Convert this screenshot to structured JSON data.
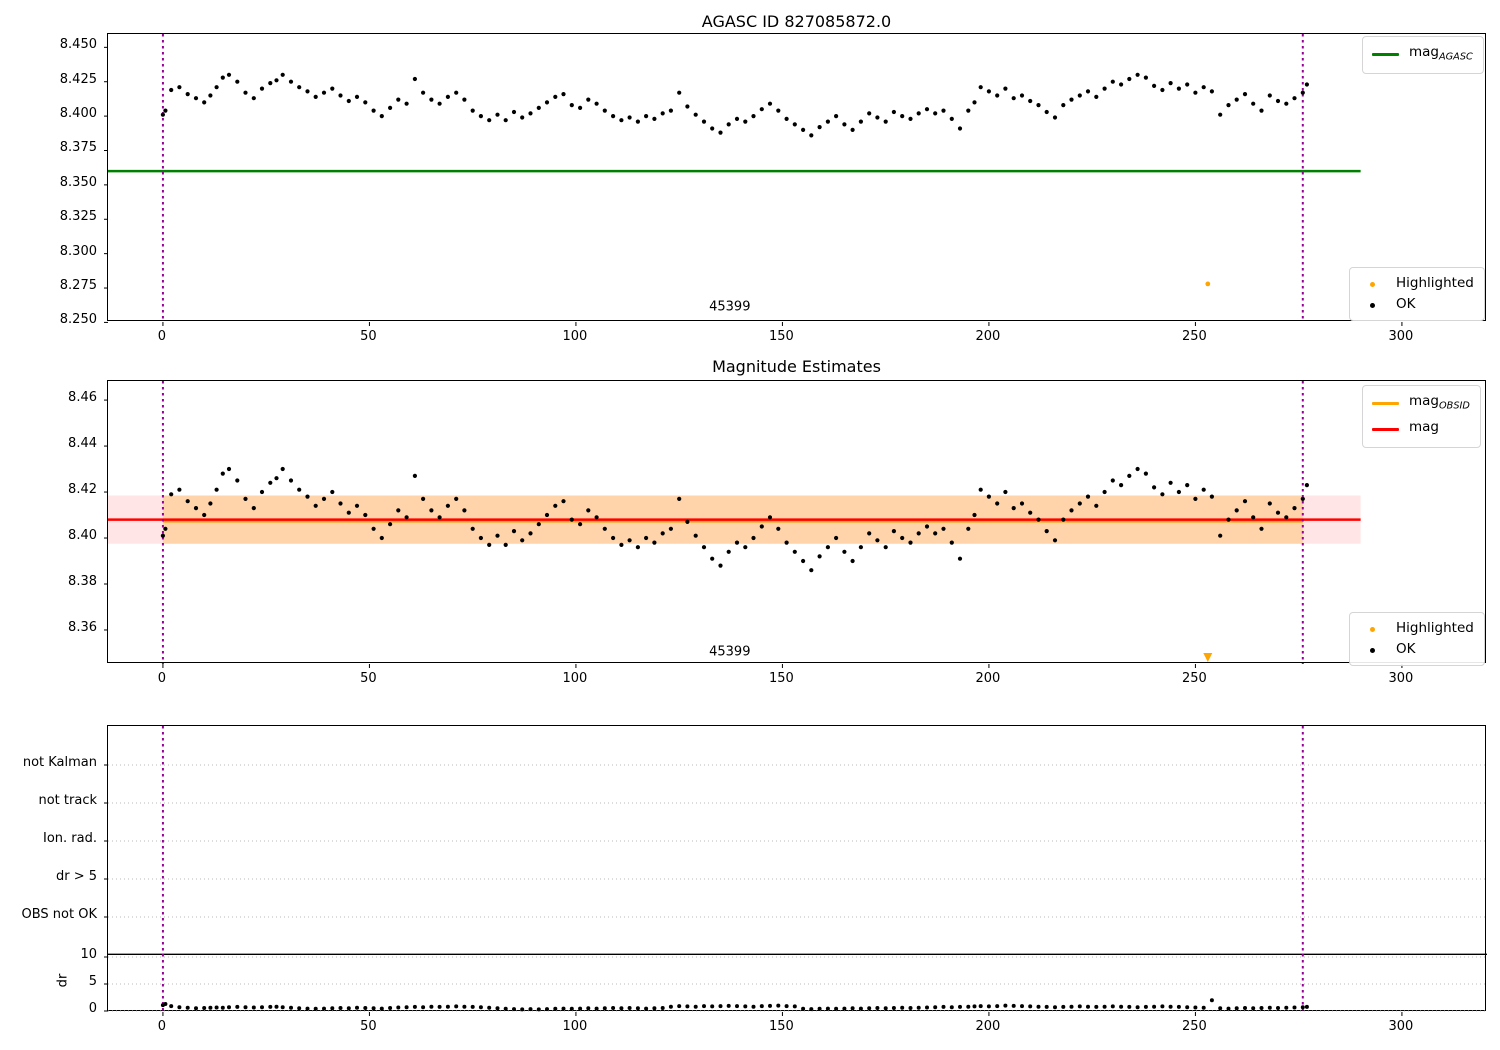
{
  "figure_title": "AGASC ID 827085872.0",
  "colors": {
    "ok_points": "#000000",
    "highlighted": "#ffa500",
    "mag_agasc_line": "#008000",
    "mag_line": "#ff0000",
    "mag_obsid_line": "#ffa500",
    "obsid_boundary": "#990099",
    "band_red": "rgba(255,0,0,0.10)",
    "band_orange": "rgba(255,165,0,0.25)",
    "grid": "#b8b8b8",
    "threshold_line": "#000000"
  },
  "chart_data": {
    "plots": [
      {
        "type": "scatter",
        "title": "AGASC ID 827085872.0",
        "xlim": [
          -13.3,
          320.6
        ],
        "ylim": [
          8.2503,
          8.4597
        ],
        "xticks": [
          0,
          50,
          100,
          150,
          200,
          250,
          300
        ],
        "yticks": [
          {
            "v": 8.25,
            "label": "8.250"
          },
          {
            "v": 8.275,
            "label": "8.275"
          },
          {
            "v": 8.3,
            "label": "8.300"
          },
          {
            "v": 8.325,
            "label": "8.325"
          },
          {
            "v": 8.35,
            "label": "8.350"
          },
          {
            "v": 8.375,
            "label": "8.375"
          },
          {
            "v": 8.4,
            "label": "8.400"
          },
          {
            "v": 8.425,
            "label": "8.425"
          },
          {
            "v": 8.45,
            "label": "8.450"
          }
        ],
        "mag_agasc_line": {
          "y": 8.36,
          "x0": -13.3,
          "x1": 290,
          "color": "#008000"
        },
        "obsid_span": {
          "x0": 0,
          "x1": 276
        },
        "obsid_label": {
          "text": "45399",
          "x": 137.5,
          "y": 8.2605
        },
        "legend_line": [
          {
            "text": "mag",
            "sub": "AGASC",
            "color": "#008000"
          }
        ],
        "legend_points": [
          {
            "label": "Highlighted",
            "color": "#ffa500"
          },
          {
            "label": "OK",
            "color": "#000000"
          }
        ],
        "highlighted": [
          [
            253,
            8.278
          ]
        ],
        "points_ref": "mag_points"
      },
      {
        "type": "scatter",
        "title": "Magnitude Estimates",
        "xlim": [
          -13.3,
          320.6
        ],
        "ylim": [
          8.3452,
          8.4683
        ],
        "xticks": [
          0,
          50,
          100,
          150,
          200,
          250,
          300
        ],
        "yticks": [
          {
            "v": 8.36,
            "label": "8.36"
          },
          {
            "v": 8.38,
            "label": "8.38"
          },
          {
            "v": 8.4,
            "label": "8.40"
          },
          {
            "v": 8.42,
            "label": "8.42"
          },
          {
            "v": 8.44,
            "label": "8.44"
          },
          {
            "v": 8.46,
            "label": "8.46"
          }
        ],
        "mag_line": {
          "y": 8.408,
          "x0": -13.3,
          "x1": 290,
          "color": "#ff0000"
        },
        "mag_obsid_line": {
          "y": 8.4073,
          "x0": 0,
          "x1": 276,
          "color": "#ffa500"
        },
        "mag_band": {
          "y0": 8.3975,
          "y1": 8.4185,
          "x0": -13.3,
          "x1": 290
        },
        "obsid_band": {
          "y0": 8.3975,
          "y1": 8.4185,
          "x0": 0,
          "x1": 276
        },
        "obsid_span": {
          "x0": 0,
          "x1": 276
        },
        "obsid_label": {
          "text": "45399",
          "x": 137.5,
          "y": 8.35
        },
        "legend_line": [
          {
            "text": "mag",
            "sub": "OBSID",
            "color": "#ffa500"
          },
          {
            "text": "mag",
            "sub": "",
            "color": "#ff0000"
          }
        ],
        "legend_points": [
          {
            "label": "Highlighted",
            "color": "#ffa500"
          },
          {
            "label": "OK",
            "color": "#000000"
          }
        ],
        "highlighted_offscale_low": [
          253
        ],
        "points_ref": "mag_points"
      },
      {
        "type": "flags-and-dr",
        "flag_labels": [
          "not Kalman",
          "not track",
          "Ion. rad.",
          "dr > 5",
          "OBS not OK"
        ],
        "dr_ticks": [
          {
            "v": 0,
            "label": "0"
          },
          {
            "v": 5,
            "label": "5"
          },
          {
            "v": 10,
            "label": "10"
          }
        ],
        "dr_axis_label": "dr",
        "dr_threshold": 10.5,
        "xlim": [
          -13.3,
          320.6
        ],
        "xticks": [
          0,
          50,
          100,
          150,
          200,
          250,
          300
        ],
        "obsid_span": {
          "x0": 0,
          "x1": 276
        },
        "points_ref": "dr_points"
      }
    ],
    "mag_points": [
      [
        0,
        8.401
      ],
      [
        0.6,
        8.404
      ],
      [
        2,
        8.419
      ],
      [
        4,
        8.421
      ],
      [
        6,
        8.416
      ],
      [
        8,
        8.413
      ],
      [
        10,
        8.41
      ],
      [
        11.5,
        8.415
      ],
      [
        13,
        8.421
      ],
      [
        14.5,
        8.428
      ],
      [
        16,
        8.43
      ],
      [
        18,
        8.425
      ],
      [
        20,
        8.417
      ],
      [
        22,
        8.413
      ],
      [
        24,
        8.42
      ],
      [
        26,
        8.424
      ],
      [
        27.5,
        8.426
      ],
      [
        29,
        8.43
      ],
      [
        31,
        8.425
      ],
      [
        33,
        8.421
      ],
      [
        35,
        8.418
      ],
      [
        37,
        8.414
      ],
      [
        39,
        8.417
      ],
      [
        41,
        8.42
      ],
      [
        43,
        8.415
      ],
      [
        45,
        8.411
      ],
      [
        47,
        8.414
      ],
      [
        49,
        8.41
      ],
      [
        51,
        8.404
      ],
      [
        53,
        8.4
      ],
      [
        55,
        8.406
      ],
      [
        57,
        8.412
      ],
      [
        59,
        8.409
      ],
      [
        61,
        8.427
      ],
      [
        63,
        8.417
      ],
      [
        65,
        8.412
      ],
      [
        67,
        8.409
      ],
      [
        69,
        8.414
      ],
      [
        71,
        8.417
      ],
      [
        73,
        8.412
      ],
      [
        75,
        8.404
      ],
      [
        77,
        8.4
      ],
      [
        79,
        8.397
      ],
      [
        81,
        8.401
      ],
      [
        83,
        8.397
      ],
      [
        85,
        8.403
      ],
      [
        87,
        8.399
      ],
      [
        89,
        8.402
      ],
      [
        91,
        8.406
      ],
      [
        93,
        8.41
      ],
      [
        95,
        8.414
      ],
      [
        97,
        8.416
      ],
      [
        99,
        8.408
      ],
      [
        101,
        8.406
      ],
      [
        103,
        8.412
      ],
      [
        105,
        8.409
      ],
      [
        107,
        8.404
      ],
      [
        109,
        8.4
      ],
      [
        111,
        8.397
      ],
      [
        113,
        8.399
      ],
      [
        115,
        8.396
      ],
      [
        117,
        8.4
      ],
      [
        119,
        8.398
      ],
      [
        121,
        8.402
      ],
      [
        123,
        8.404
      ],
      [
        125,
        8.417
      ],
      [
        127,
        8.407
      ],
      [
        129,
        8.401
      ],
      [
        131,
        8.396
      ],
      [
        133,
        8.391
      ],
      [
        135,
        8.388
      ],
      [
        137,
        8.394
      ],
      [
        139,
        8.398
      ],
      [
        141,
        8.396
      ],
      [
        143,
        8.4
      ],
      [
        145,
        8.405
      ],
      [
        147,
        8.409
      ],
      [
        149,
        8.404
      ],
      [
        151,
        8.398
      ],
      [
        153,
        8.394
      ],
      [
        155,
        8.39
      ],
      [
        157,
        8.386
      ],
      [
        159,
        8.392
      ],
      [
        161,
        8.396
      ],
      [
        163,
        8.4
      ],
      [
        165,
        8.394
      ],
      [
        167,
        8.39
      ],
      [
        169,
        8.396
      ],
      [
        171,
        8.402
      ],
      [
        173,
        8.399
      ],
      [
        175,
        8.396
      ],
      [
        177,
        8.403
      ],
      [
        179,
        8.4
      ],
      [
        181,
        8.398
      ],
      [
        183,
        8.402
      ],
      [
        185,
        8.405
      ],
      [
        187,
        8.402
      ],
      [
        189,
        8.404
      ],
      [
        191,
        8.398
      ],
      [
        193,
        8.391
      ],
      [
        195,
        8.404
      ],
      [
        196.5,
        8.41
      ],
      [
        198,
        8.421
      ],
      [
        200,
        8.418
      ],
      [
        202,
        8.415
      ],
      [
        204,
        8.42
      ],
      [
        206,
        8.413
      ],
      [
        208,
        8.415
      ],
      [
        210,
        8.411
      ],
      [
        212,
        8.408
      ],
      [
        214,
        8.403
      ],
      [
        216,
        8.399
      ],
      [
        218,
        8.408
      ],
      [
        220,
        8.412
      ],
      [
        222,
        8.415
      ],
      [
        224,
        8.418
      ],
      [
        226,
        8.414
      ],
      [
        228,
        8.42
      ],
      [
        230,
        8.425
      ],
      [
        232,
        8.423
      ],
      [
        234,
        8.427
      ],
      [
        236,
        8.43
      ],
      [
        238,
        8.428
      ],
      [
        240,
        8.422
      ],
      [
        242,
        8.419
      ],
      [
        244,
        8.424
      ],
      [
        246,
        8.42
      ],
      [
        248,
        8.423
      ],
      [
        250,
        8.417
      ],
      [
        252,
        8.421
      ],
      [
        254,
        8.418
      ],
      [
        256,
        8.401
      ],
      [
        258,
        8.408
      ],
      [
        260,
        8.412
      ],
      [
        262,
        8.416
      ],
      [
        264,
        8.409
      ],
      [
        266,
        8.404
      ],
      [
        268,
        8.415
      ],
      [
        270,
        8.411
      ],
      [
        272,
        8.409
      ],
      [
        274,
        8.413
      ],
      [
        276,
        8.417
      ],
      [
        277,
        8.423
      ]
    ],
    "dr_points": [
      [
        0,
        1.1
      ],
      [
        0.6,
        1.3
      ],
      [
        2,
        0.9
      ],
      [
        4,
        0.7
      ],
      [
        6,
        0.6
      ],
      [
        8,
        0.5
      ],
      [
        10,
        0.55
      ],
      [
        11.5,
        0.6
      ],
      [
        13,
        0.65
      ],
      [
        14.5,
        0.6
      ],
      [
        16,
        0.7
      ],
      [
        18,
        0.75
      ],
      [
        20,
        0.7
      ],
      [
        22,
        0.65
      ],
      [
        24,
        0.7
      ],
      [
        26,
        0.75
      ],
      [
        27.5,
        0.8
      ],
      [
        29,
        0.7
      ],
      [
        31,
        0.6
      ],
      [
        33,
        0.5
      ],
      [
        35,
        0.45
      ],
      [
        37,
        0.4
      ],
      [
        39,
        0.45
      ],
      [
        41,
        0.5
      ],
      [
        43,
        0.55
      ],
      [
        45,
        0.5
      ],
      [
        47,
        0.6
      ],
      [
        49,
        0.55
      ],
      [
        51,
        0.5
      ],
      [
        53,
        0.45
      ],
      [
        55,
        0.55
      ],
      [
        57,
        0.65
      ],
      [
        59,
        0.7
      ],
      [
        61,
        0.75
      ],
      [
        63,
        0.7
      ],
      [
        65,
        0.8
      ],
      [
        67,
        0.75
      ],
      [
        69,
        0.8
      ],
      [
        71,
        0.85
      ],
      [
        73,
        0.8
      ],
      [
        75,
        0.75
      ],
      [
        77,
        0.7
      ],
      [
        79,
        0.6
      ],
      [
        81,
        0.5
      ],
      [
        83,
        0.4
      ],
      [
        85,
        0.35
      ],
      [
        87,
        0.3
      ],
      [
        89,
        0.35
      ],
      [
        91,
        0.3
      ],
      [
        93,
        0.35
      ],
      [
        95,
        0.4
      ],
      [
        97,
        0.45
      ],
      [
        99,
        0.4
      ],
      [
        101,
        0.45
      ],
      [
        103,
        0.5
      ],
      [
        105,
        0.45
      ],
      [
        107,
        0.5
      ],
      [
        109,
        0.55
      ],
      [
        111,
        0.5
      ],
      [
        113,
        0.55
      ],
      [
        115,
        0.5
      ],
      [
        117,
        0.45
      ],
      [
        119,
        0.5
      ],
      [
        121,
        0.55
      ],
      [
        123,
        0.8
      ],
      [
        125,
        0.9
      ],
      [
        127,
        0.85
      ],
      [
        129,
        0.8
      ],
      [
        131,
        0.9
      ],
      [
        133,
        0.85
      ],
      [
        135,
        0.9
      ],
      [
        137,
        0.95
      ],
      [
        139,
        0.9
      ],
      [
        141,
        0.85
      ],
      [
        143,
        0.8
      ],
      [
        145,
        0.9
      ],
      [
        147,
        0.95
      ],
      [
        149,
        1.0
      ],
      [
        151,
        0.9
      ],
      [
        153,
        0.85
      ],
      [
        155,
        0.4
      ],
      [
        157,
        0.35
      ],
      [
        159,
        0.4
      ],
      [
        161,
        0.45
      ],
      [
        163,
        0.4
      ],
      [
        165,
        0.45
      ],
      [
        167,
        0.5
      ],
      [
        169,
        0.45
      ],
      [
        171,
        0.5
      ],
      [
        173,
        0.55
      ],
      [
        175,
        0.5
      ],
      [
        177,
        0.55
      ],
      [
        179,
        0.6
      ],
      [
        181,
        0.55
      ],
      [
        183,
        0.6
      ],
      [
        185,
        0.65
      ],
      [
        187,
        0.7
      ],
      [
        189,
        0.75
      ],
      [
        191,
        0.7
      ],
      [
        193,
        0.75
      ],
      [
        195,
        0.8
      ],
      [
        196.5,
        0.85
      ],
      [
        198,
        0.9
      ],
      [
        200,
        0.85
      ],
      [
        202,
        0.9
      ],
      [
        204,
        1.0
      ],
      [
        206,
        0.95
      ],
      [
        208,
        0.9
      ],
      [
        210,
        0.85
      ],
      [
        212,
        0.8
      ],
      [
        214,
        0.75
      ],
      [
        216,
        0.7
      ],
      [
        218,
        0.75
      ],
      [
        220,
        0.8
      ],
      [
        222,
        0.85
      ],
      [
        224,
        0.8
      ],
      [
        226,
        0.75
      ],
      [
        228,
        0.8
      ],
      [
        230,
        0.85
      ],
      [
        232,
        0.8
      ],
      [
        234,
        0.75
      ],
      [
        236,
        0.7
      ],
      [
        238,
        0.75
      ],
      [
        240,
        0.8
      ],
      [
        242,
        0.85
      ],
      [
        244,
        0.8
      ],
      [
        246,
        0.75
      ],
      [
        248,
        0.7
      ],
      [
        250,
        0.65
      ],
      [
        252,
        0.6
      ],
      [
        254,
        2.0
      ],
      [
        256,
        0.5
      ],
      [
        258,
        0.45
      ],
      [
        260,
        0.5
      ],
      [
        262,
        0.55
      ],
      [
        264,
        0.5
      ],
      [
        266,
        0.55
      ],
      [
        268,
        0.6
      ],
      [
        270,
        0.55
      ],
      [
        272,
        0.6
      ],
      [
        274,
        0.65
      ],
      [
        276,
        0.7
      ],
      [
        277,
        0.75
      ]
    ]
  }
}
